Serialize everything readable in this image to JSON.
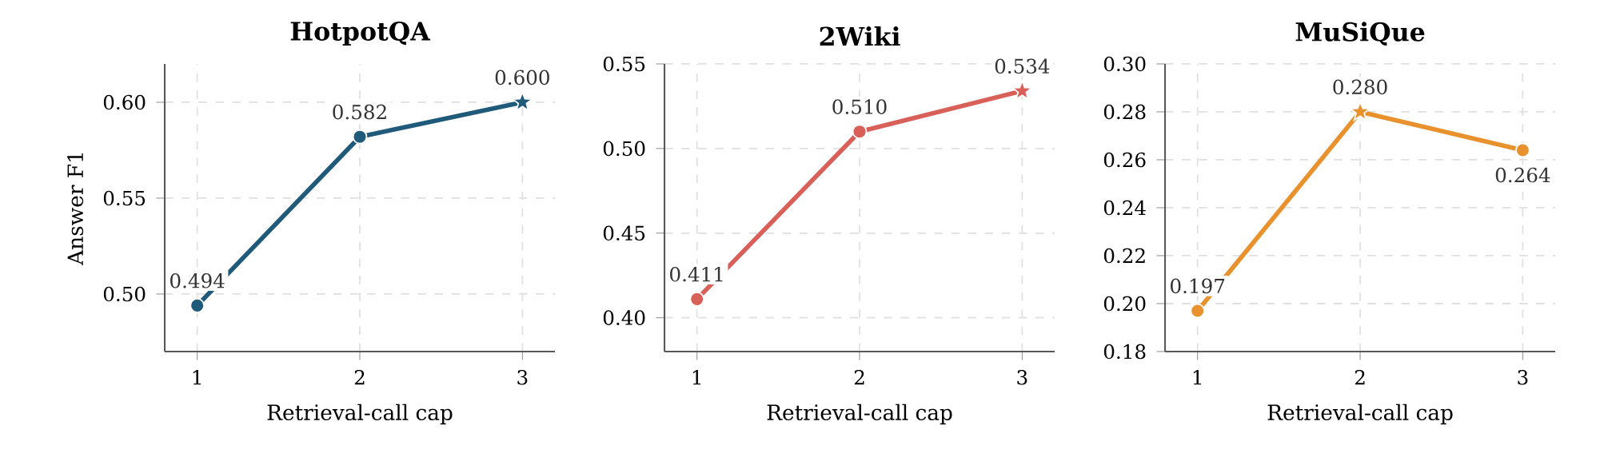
{
  "chart_data": [
    {
      "type": "line",
      "title": "HotpotQA",
      "xlabel": "Retrieval-call cap",
      "ylabel": "Answer F1",
      "x": [
        1,
        2,
        3
      ],
      "xlim": [
        0.8,
        3.2
      ],
      "xticks": [
        1,
        2,
        3
      ],
      "ylim": [
        0.47,
        0.62
      ],
      "yticks": [
        {
          "value": 0.5,
          "label": "0.50"
        },
        0.55,
        {
          "value": 0.6,
          "label": "0.60"
        }
      ],
      "grid": true,
      "series": [
        {
          "color": "#1f5a7a",
          "marker": "none",
          "values": [
            0.494,
            0.582,
            0.6
          ],
          "value_labels": [
            "0.494",
            "0.582",
            "0.600"
          ]
        },
        {
          "type": "scatter",
          "color": "#1f5a7a",
          "marker": "circle",
          "x": [
            1,
            2
          ],
          "values": [
            0.494,
            0.582
          ]
        },
        {
          "type": "scatter",
          "color": "#1f5a7a",
          "marker": "star",
          "x": [
            3
          ],
          "values": [
            0.6
          ]
        }
      ]
    },
    {
      "type": "line",
      "title": "2Wiki",
      "xlabel": "Retrieval-call cap",
      "x": [
        1,
        2,
        3
      ],
      "xlim": [
        0.8,
        3.2
      ],
      "xticks": [
        1,
        2,
        3
      ],
      "ylim": [
        0.38,
        0.55
      ],
      "yticks": [
        {
          "value": 0.4,
          "label": "0.40"
        },
        0.45,
        {
          "value": 0.5,
          "label": "0.50"
        },
        0.55
      ],
      "grid": true,
      "series": [
        {
          "color": "#d95f59",
          "marker": "none",
          "values": [
            0.411,
            0.51,
            0.534
          ],
          "value_labels": [
            "0.411",
            "0.510",
            "0.534"
          ]
        },
        {
          "type": "scatter",
          "color": "#d95f59",
          "marker": "circle",
          "x": [
            1,
            2
          ],
          "values": [
            0.411,
            0.51
          ]
        },
        {
          "type": "scatter",
          "color": "#d95f59",
          "marker": "star",
          "x": [
            3
          ],
          "values": [
            0.534
          ]
        }
      ]
    },
    {
      "type": "line",
      "title": "MuSiQue",
      "xlabel": "Retrieval-call cap",
      "x": [
        1,
        2,
        3
      ],
      "xlim": [
        0.8,
        3.2
      ],
      "xticks": [
        1,
        2,
        3
      ],
      "ylim": [
        0.18,
        0.3
      ],
      "yticks": [
        0.18,
        {
          "value": 0.2,
          "label": "0.20"
        },
        0.22,
        0.24,
        0.26,
        0.28,
        {
          "value": 0.3,
          "label": "0.30"
        }
      ],
      "grid": true,
      "series": [
        {
          "color": "#e8912d",
          "marker": "none",
          "values": [
            0.197,
            0.28,
            0.264
          ],
          "value_labels": [
            "0.197",
            "0.280",
            "0.264"
          ]
        },
        {
          "type": "scatter",
          "color": "#e8912d",
          "marker": "circle",
          "x": [
            1,
            3
          ],
          "values": [
            0.197,
            0.264
          ]
        },
        {
          "type": "scatter",
          "color": "#e8912d",
          "marker": "star",
          "x": [
            2
          ],
          "values": [
            0.28
          ]
        }
      ]
    }
  ]
}
